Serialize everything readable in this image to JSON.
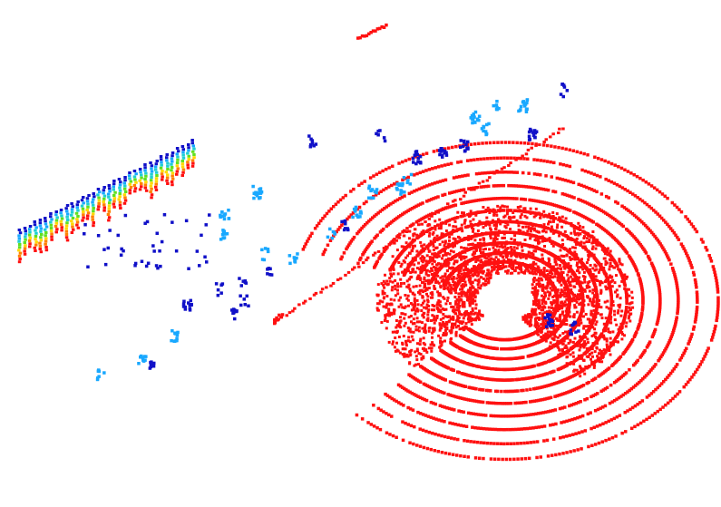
{
  "scene": {
    "background_color": "#ffffff",
    "colormap": "jet",
    "colors": {
      "ground": "#ff1010",
      "low": "#1010c8",
      "mid": "#18a8ff",
      "teal": "#20d0d0",
      "green": "#60e020",
      "yellow": "#ffd800",
      "orange": "#ff8000"
    }
  }
}
